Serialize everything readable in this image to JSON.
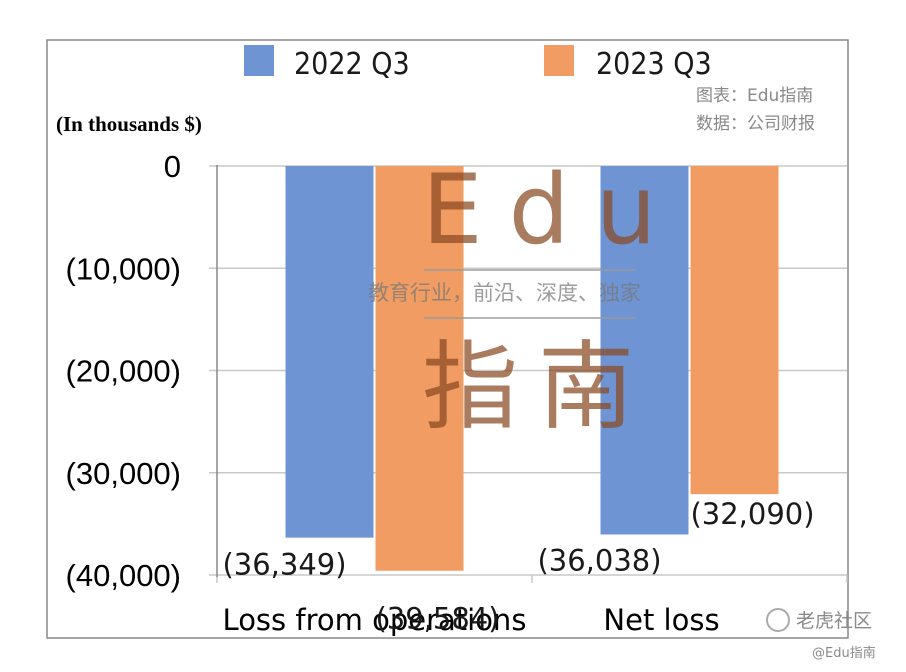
{
  "chart_data": {
    "type": "bar",
    "title": "",
    "unit_label": "(In thousands $)",
    "categories": [
      "Loss from operations",
      "Net loss"
    ],
    "series": [
      {
        "name": "2022 Q3",
        "color": "#6e94d4",
        "values": [
          -36349,
          -36038
        ],
        "labels": [
          "(36,349)",
          "(36,038)"
        ]
      },
      {
        "name": "2023 Q3",
        "color": "#f09c62",
        "values": [
          -39584,
          -32090
        ],
        "labels": [
          "(39,584)",
          "(32,090)"
        ]
      }
    ],
    "ylim": [
      -40000,
      0
    ],
    "yticks": [
      0,
      -10000,
      -20000,
      -30000,
      -40000
    ],
    "ytick_labels": [
      "0",
      "(10,000)",
      "(20,000)",
      "(30,000)",
      "(40,000)"
    ],
    "grid": true,
    "legend_position": "top"
  },
  "credits": {
    "chart_by": "图表：Edu指南",
    "data_by": "数据：公司财报"
  },
  "watermark": {
    "brand": "Edu",
    "slogan": "教育行业，前沿、深度、独家",
    "name": "指南"
  },
  "footer": {
    "site": "老虎社区",
    "handle": "@Edu指南"
  },
  "colors": {
    "grid": "#c8c8c8",
    "frame": "#888888"
  }
}
